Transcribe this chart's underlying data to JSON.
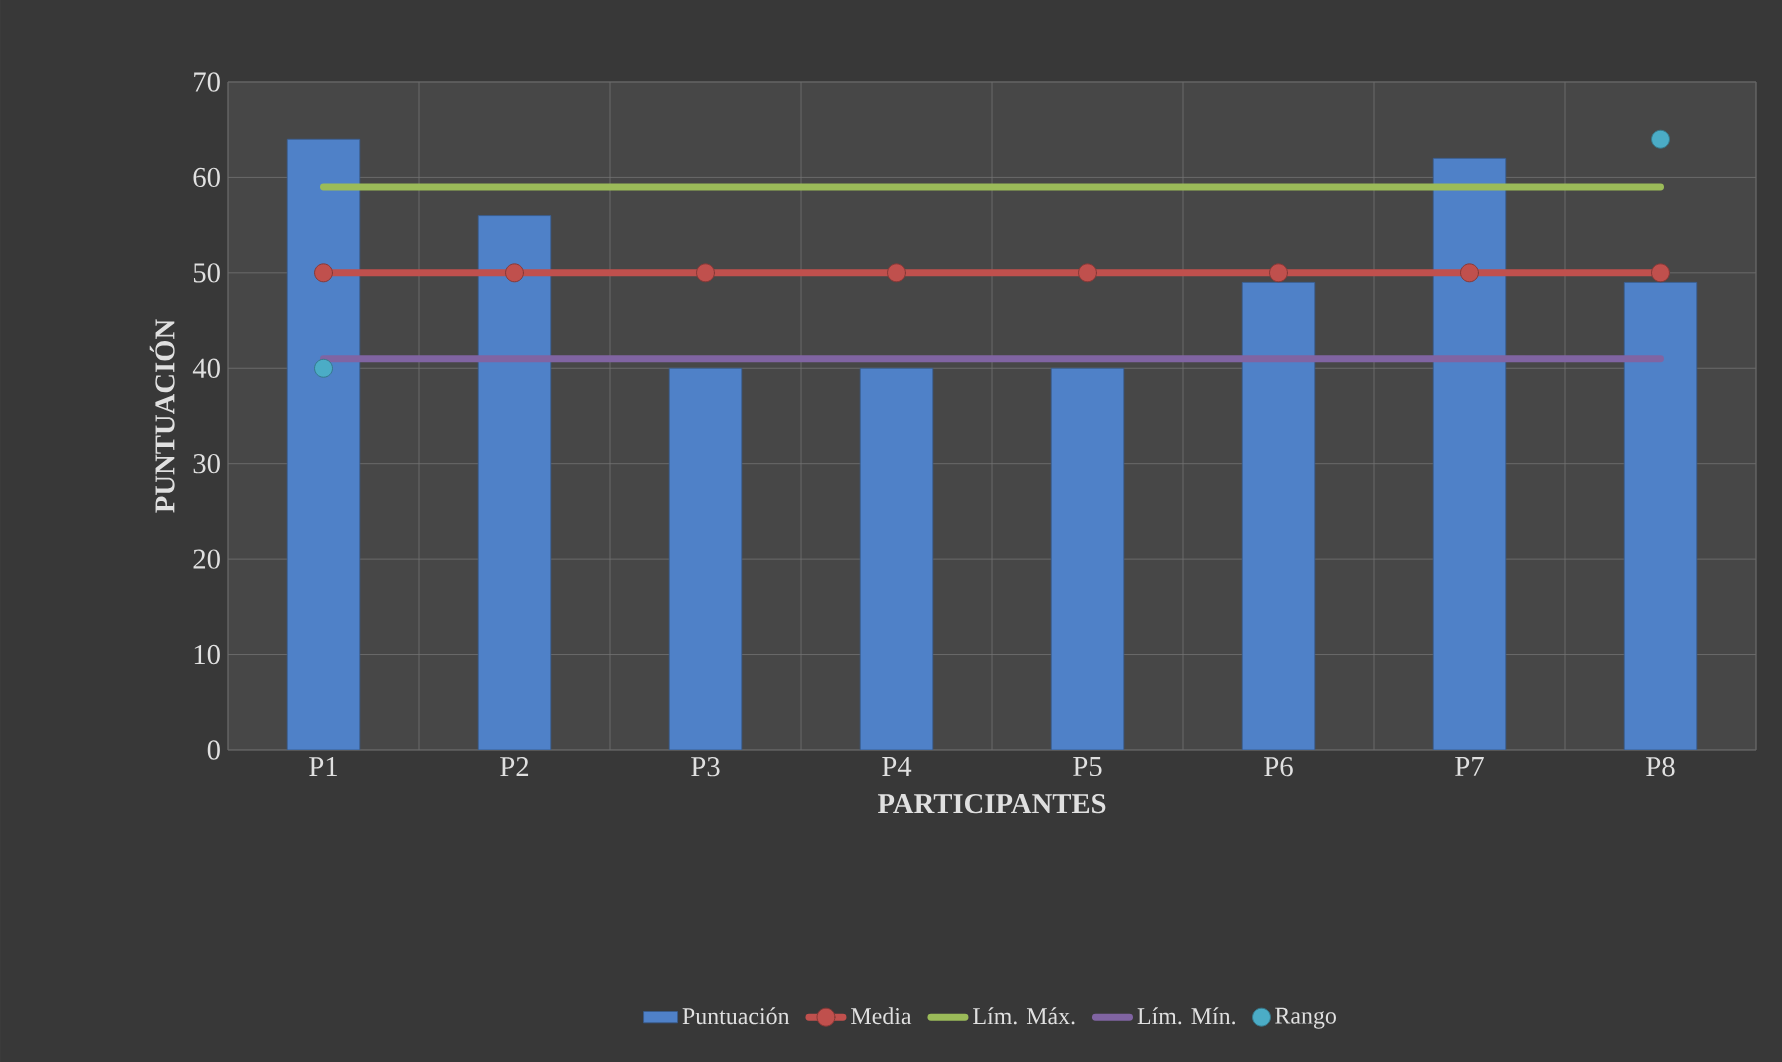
{
  "chart_data": {
    "type": "bar",
    "xlabel": "PARTICIPANTES",
    "ylabel": "PUNTUACIÓN",
    "categories": [
      "P1",
      "P2",
      "P3",
      "P4",
      "P5",
      "P6",
      "P7",
      "P8"
    ],
    "series": [
      {
        "name": "Puntuación",
        "color": "#4f81c8",
        "values": [
          64,
          56,
          40,
          40,
          40,
          49,
          62,
          49
        ]
      },
      {
        "name": "Media",
        "type": "line",
        "marker": "circle",
        "color": "#c0504d",
        "values": [
          50,
          50,
          50,
          50,
          50,
          50,
          50,
          50
        ]
      },
      {
        "name": "Lím. Máx.",
        "type": "line",
        "color": "#9bbb59",
        "values": [
          59,
          59,
          59,
          59,
          59,
          59,
          59,
          59
        ]
      },
      {
        "name": "Lím. Mín.",
        "type": "line",
        "color": "#8064a2",
        "values": [
          41,
          41,
          41,
          41,
          41,
          41,
          41,
          41
        ]
      },
      {
        "name": "Rango",
        "type": "scatter",
        "marker": "circle",
        "color": "#4bacc6",
        "values": [
          40,
          null,
          null,
          null,
          null,
          null,
          null,
          64
        ]
      }
    ],
    "ylim": [
      0,
      70
    ],
    "yticks": [
      0,
      10,
      20,
      30,
      40,
      50,
      60,
      70
    ],
    "grid": true,
    "legend": "bottom"
  }
}
